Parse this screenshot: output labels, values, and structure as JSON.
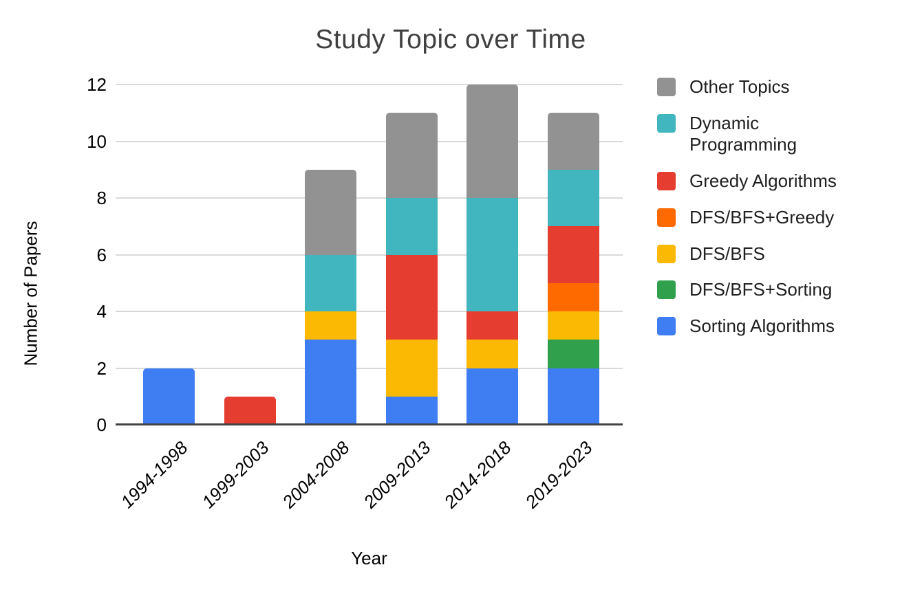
{
  "page": {
    "background": "#ffffff"
  },
  "chart_data": {
    "type": "bar",
    "stacked": true,
    "title": "Study Topic over Time",
    "xlabel": "Year",
    "ylabel": "Number of Papers",
    "ylim": [
      0,
      12
    ],
    "yticks": [
      0,
      2,
      4,
      6,
      8,
      10,
      12
    ],
    "grid": true,
    "legend_position": "right",
    "categories": [
      "1994-1998",
      "1999-2003",
      "2004-2008",
      "2009-2013",
      "2014-2018",
      "2019-2023"
    ],
    "stack_order": "bottom_to_top",
    "series": [
      {
        "name": "Sorting Algorithms",
        "color": "#3F7DF3",
        "values": [
          2,
          0,
          3,
          1,
          2,
          2
        ]
      },
      {
        "name": "DFS/BFS+Sorting",
        "color": "#31A04C",
        "values": [
          0,
          0,
          0,
          0,
          0,
          1
        ]
      },
      {
        "name": "DFS/BFS",
        "color": "#FBB903",
        "values": [
          0,
          0,
          1,
          2,
          1,
          1
        ]
      },
      {
        "name": "DFS/BFS+Greedy",
        "color": "#FF6A00",
        "values": [
          0,
          0,
          0,
          0,
          0,
          1
        ]
      },
      {
        "name": "Greedy Algorithms",
        "color": "#E53E31",
        "values": [
          0,
          1,
          0,
          3,
          1,
          2
        ]
      },
      {
        "name": "Dynamic Programming",
        "color": "#42B6BE",
        "values": [
          0,
          0,
          2,
          2,
          4,
          2
        ]
      },
      {
        "name": "Other Topics",
        "color": "#929292",
        "values": [
          0,
          0,
          3,
          3,
          4,
          2
        ]
      }
    ],
    "totals": [
      2,
      1,
      9,
      11,
      12,
      11
    ],
    "legend": [
      {
        "label": "Other Topics",
        "color": "#929292"
      },
      {
        "label": "Dynamic Programming",
        "color": "#42B6BE"
      },
      {
        "label": "Greedy Algorithms",
        "color": "#E53E31"
      },
      {
        "label": "DFS/BFS+Greedy",
        "color": "#FF6A00"
      },
      {
        "label": "DFS/BFS",
        "color": "#FBB903"
      },
      {
        "label": "DFS/BFS+Sorting",
        "color": "#31A04C"
      },
      {
        "label": "Sorting Algorithms",
        "color": "#3F7DF3"
      }
    ],
    "axis_colors": {
      "gridline": "#d9d9d9",
      "baseline": "#424242",
      "title_text": "#404040"
    }
  }
}
